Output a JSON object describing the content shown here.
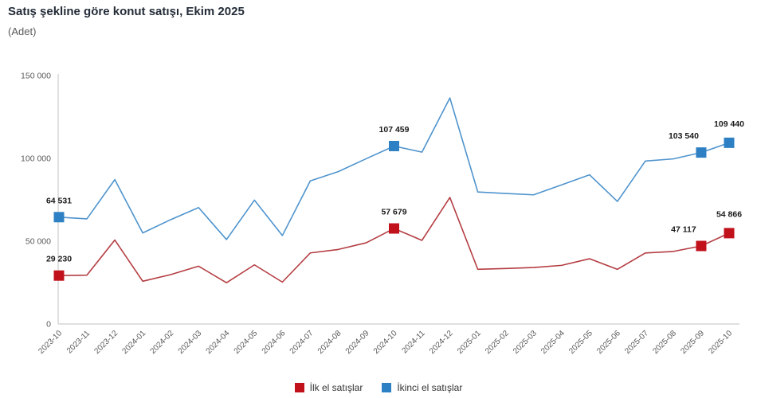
{
  "title": "Satış şekline göre konut satışı, Ekim 2025",
  "subtitle": "(Adet)",
  "colors": {
    "first_hand_marker": "#c1121c",
    "first_hand_line": "#b43d42",
    "second_hand_marker": "#2e80c4",
    "second_hand_line": "#4f94cd",
    "axis_line": "#d6d6d6",
    "tick_text": "#595959",
    "data_label_text": "#1a1a1a",
    "title_text": "#232c38"
  },
  "legend": {
    "items": [
      {
        "label": "İlk el satışlar",
        "color": "#c1121c"
      },
      {
        "label": "İkinci el satışlar",
        "color": "#2e80c4"
      }
    ]
  },
  "chart_data": {
    "type": "line",
    "title": "Satış şekline göre konut satışı, Ekim 2025",
    "unit_label": "(Adet)",
    "x": [
      "2023-10",
      "2023-11",
      "2023-12",
      "2024-01",
      "2024-02",
      "2024-03",
      "2024-04",
      "2024-05",
      "2024-06",
      "2024-07",
      "2024-08",
      "2024-09",
      "2024-10",
      "2024-11",
      "2024-12",
      "2025-01",
      "2025-02",
      "2025-03",
      "2025-04",
      "2025-05",
      "2025-06",
      "2025-07",
      "2025-08",
      "2025-09",
      "2025-10"
    ],
    "series": [
      {
        "name": "İlk el satışlar",
        "marker_color": "#c1121c",
        "line_color": "#b43d42",
        "values": [
          29230,
          29500,
          50700,
          25800,
          29800,
          34900,
          24900,
          35700,
          25300,
          42900,
          45000,
          49000,
          57679,
          50500,
          76400,
          33000,
          33500,
          34100,
          35400,
          39400,
          33000,
          42900,
          43800,
          47117,
          54866
        ],
        "labeled_points": [
          {
            "index": 0,
            "value": 29230,
            "label": "29 230"
          },
          {
            "index": 12,
            "value": 57679,
            "label": "57 679"
          },
          {
            "index": 23,
            "value": 47117,
            "label": "47 117"
          },
          {
            "index": 24,
            "value": 54866,
            "label": "54 866"
          }
        ]
      },
      {
        "name": "İkinci el satışlar",
        "marker_color": "#2e80c4",
        "line_color": "#4f94cd",
        "values": [
          64531,
          63500,
          87200,
          55000,
          63000,
          70300,
          51000,
          74800,
          53400,
          86400,
          92000,
          99800,
          107459,
          103800,
          136500,
          79700,
          78800,
          78000,
          84000,
          90100,
          74000,
          98400,
          99700,
          103540,
          109440
        ],
        "labeled_points": [
          {
            "index": 0,
            "value": 64531,
            "label": "64 531"
          },
          {
            "index": 12,
            "value": 107459,
            "label": "107 459"
          },
          {
            "index": 23,
            "value": 103540,
            "label": "103 540"
          },
          {
            "index": 24,
            "value": 109440,
            "label": "109 440"
          }
        ]
      }
    ],
    "ylim": [
      0,
      150000
    ],
    "yticks": [
      0,
      50000,
      100000,
      150000
    ],
    "ytick_labels": [
      "0",
      "50 000",
      "100 000",
      "150 000"
    ],
    "grid": false,
    "legend_position": "bottom-center"
  }
}
